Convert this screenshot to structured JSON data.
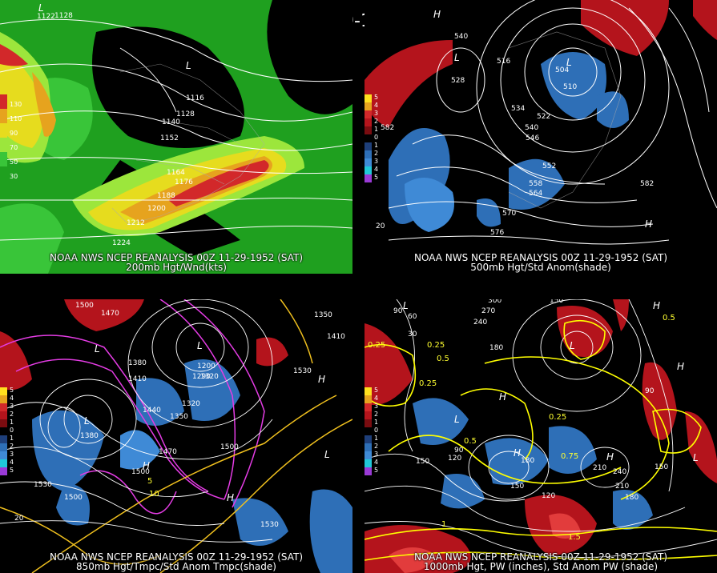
{
  "title": "00Z 11-29-1952 (SAT)",
  "panels": {
    "p1": {
      "caption1": "NOAA NWS NCEP REANALYSIS 00Z 11-29-1952 (SAT)",
      "caption2": "200mb Hgt/Wnd(kts)",
      "legend": [
        "130",
        "110",
        "90",
        "70",
        "50",
        "30"
      ],
      "contour_labels": [
        "1128",
        "1116",
        "1128",
        "1140",
        "1152",
        "1164",
        "1176",
        "1188",
        "1200",
        "1212",
        "1224",
        "1122"
      ]
    },
    "p2": {
      "caption1": "NOAA NWS NCEP REANALYSIS 00Z 11-29-1952 (SAT)",
      "caption2": "500mb Hgt/Std Anom(shade)",
      "legend": [
        "5",
        "4",
        "3",
        "2",
        "1",
        "0",
        "1",
        "2",
        "3",
        "4",
        "5"
      ],
      "contour_labels": [
        "540",
        "516",
        "528",
        "504",
        "510",
        "534",
        "522",
        "540",
        "546",
        "552",
        "558",
        "564",
        "570",
        "576",
        "582",
        "582",
        "20"
      ]
    },
    "p3": {
      "caption1": "NOAA NWS NCEP REANALYSIS 00Z 11-29-1952 (SAT)",
      "caption2": "850mb Hgt/Tmpc/Std Anom Tmpc(shade)",
      "legend": [
        "5",
        "4",
        "3",
        "2",
        "1",
        "0",
        "1",
        "2",
        "3",
        "4",
        "5"
      ],
      "contour_labels": [
        "1500",
        "1470",
        "1380",
        "1410",
        "1440",
        "1350",
        "1320",
        "1290",
        "1200",
        "1500",
        "1470",
        "1500",
        "1530",
        "1500",
        "1530",
        "1410",
        "1350",
        "1320",
        "1530",
        "1380",
        "20",
        "5",
        "10"
      ]
    },
    "p4": {
      "caption1": "NOAA NWS NCEP REANALYSIS 00Z 11-29-1952 (SAT)",
      "caption2": "1000mb Hgt, PW (inches), Std Anom PW (shade)",
      "legend": [
        "5",
        "4",
        "3",
        "2",
        "1",
        "0",
        "1",
        "2",
        "3",
        "4",
        "5"
      ],
      "contour_labels": [
        "300",
        "270",
        "240",
        "150",
        "180",
        "90",
        "60",
        "30",
        "0.25",
        "0.25",
        "0.5",
        "0.25",
        "0.25",
        "150",
        "120",
        "90",
        "0.5",
        "210",
        "180",
        "150",
        "120",
        "90",
        "180",
        "210",
        "240",
        "1.5",
        "1",
        "0.5",
        "0.75",
        "150"
      ]
    }
  },
  "colors": {
    "wind_30": "#1fa01f",
    "wind_50": "#39c539",
    "wind_70": "#9ce63c",
    "wind_90": "#e6dc1e",
    "wind_110": "#e6a31e",
    "wind_130": "#d2282a",
    "anom_pos": "#b4141c",
    "anom_neg": "#2e6fb7",
    "contour": "#ffffff",
    "temp": "#e43ce4",
    "temp_warm": "#f0c01e",
    "pw": "#ffff00"
  }
}
